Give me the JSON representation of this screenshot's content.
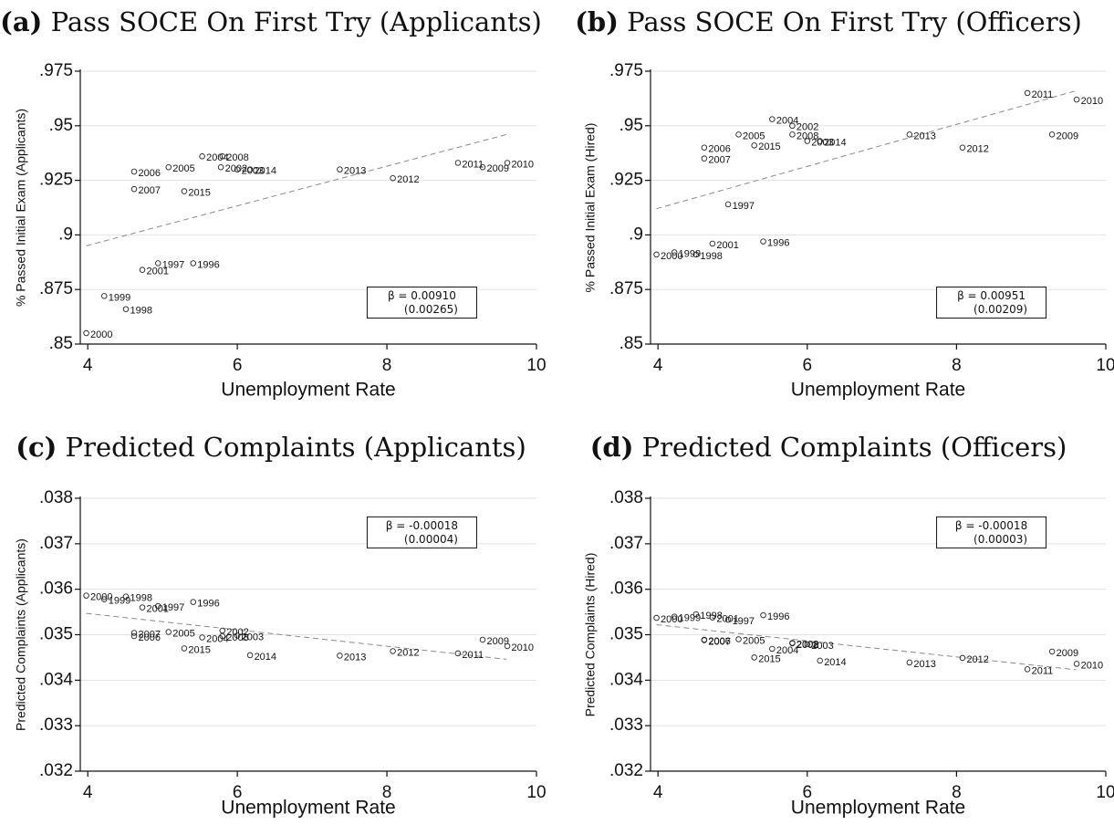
{
  "chart_data": [
    {
      "type": "scatter",
      "panel_letter": "(a)",
      "title": "Pass SOCE On First Try (Applicants)",
      "xlabel": "Unemployment Rate",
      "ylabel": "% Passed Initial Exam (Applicants)",
      "xlim": [
        3.9,
        10
      ],
      "ylim": [
        0.85,
        0.975
      ],
      "xticks": [
        4,
        6,
        8,
        10
      ],
      "xtick_labels": [
        "4",
        "6",
        "8",
        "10"
      ],
      "yticks": [
        0.85,
        0.875,
        0.9,
        0.925,
        0.95,
        0.975
      ],
      "ytick_labels": [
        ".85",
        ".875",
        ".9",
        ".925",
        ".95",
        ".975"
      ],
      "grid": true,
      "annotation": {
        "line1": "β = 0.00910",
        "line2": "(0.00265)",
        "x": 9.2,
        "y": 0.869
      },
      "fit_line": {
        "x": [
          3.98,
          9.6
        ],
        "y": [
          0.895,
          0.946
        ]
      },
      "points": [
        {
          "label": "2000",
          "x": 3.98,
          "y": 0.855
        },
        {
          "label": "1999",
          "x": 4.22,
          "y": 0.872
        },
        {
          "label": "1998",
          "x": 4.51,
          "y": 0.866
        },
        {
          "label": "2001",
          "x": 4.73,
          "y": 0.884
        },
        {
          "label": "1997",
          "x": 4.94,
          "y": 0.887
        },
        {
          "label": "1996",
          "x": 5.41,
          "y": 0.887
        },
        {
          "label": "2006",
          "x": 4.62,
          "y": 0.929
        },
        {
          "label": "2007",
          "x": 4.62,
          "y": 0.921
        },
        {
          "label": "2005",
          "x": 5.08,
          "y": 0.931
        },
        {
          "label": "2015",
          "x": 5.29,
          "y": 0.92
        },
        {
          "label": "2004",
          "x": 5.53,
          "y": 0.936
        },
        {
          "label": "2008",
          "x": 5.8,
          "y": 0.936
        },
        {
          "label": "2002",
          "x": 5.78,
          "y": 0.931
        },
        {
          "label": "2003",
          "x": 6.0,
          "y": 0.93
        },
        {
          "label": "2014",
          "x": 6.17,
          "y": 0.93
        },
        {
          "label": "2013",
          "x": 7.37,
          "y": 0.93
        },
        {
          "label": "2012",
          "x": 8.08,
          "y": 0.926
        },
        {
          "label": "2011",
          "x": 8.95,
          "y": 0.933
        },
        {
          "label": "2009",
          "x": 9.28,
          "y": 0.931
        },
        {
          "label": "2010",
          "x": 9.61,
          "y": 0.933
        }
      ]
    },
    {
      "type": "scatter",
      "panel_letter": "(b)",
      "title": "Pass SOCE On First Try (Officers)",
      "xlabel": "Unemployment Rate",
      "ylabel": "% Passed Initial Exam (Hired)",
      "xlim": [
        3.9,
        10
      ],
      "ylim": [
        0.85,
        0.975
      ],
      "xticks": [
        4,
        6,
        8,
        10
      ],
      "xtick_labels": [
        "4",
        "6",
        "8",
        "10"
      ],
      "yticks": [
        0.85,
        0.875,
        0.9,
        0.925,
        0.95,
        0.975
      ],
      "ytick_labels": [
        ".85",
        ".875",
        ".9",
        ".925",
        ".95",
        ".975"
      ],
      "grid": true,
      "annotation": {
        "line1": "β = 0.00951",
        "line2": "(0.00209)",
        "x": 9.2,
        "y": 0.869
      },
      "fit_line": {
        "x": [
          3.98,
          9.6
        ],
        "y": [
          0.912,
          0.966
        ]
      },
      "points": [
        {
          "label": "2000",
          "x": 3.98,
          "y": 0.891
        },
        {
          "label": "1999",
          "x": 4.22,
          "y": 0.892
        },
        {
          "label": "1998",
          "x": 4.51,
          "y": 0.891
        },
        {
          "label": "2001",
          "x": 4.73,
          "y": 0.896
        },
        {
          "label": "1996",
          "x": 5.41,
          "y": 0.897
        },
        {
          "label": "1997",
          "x": 4.94,
          "y": 0.914
        },
        {
          "label": "2006",
          "x": 4.62,
          "y": 0.94
        },
        {
          "label": "2007",
          "x": 4.62,
          "y": 0.935
        },
        {
          "label": "2005",
          "x": 5.08,
          "y": 0.946
        },
        {
          "label": "2015",
          "x": 5.29,
          "y": 0.941
        },
        {
          "label": "2004",
          "x": 5.53,
          "y": 0.953
        },
        {
          "label": "2002",
          "x": 5.8,
          "y": 0.95
        },
        {
          "label": "2008",
          "x": 5.8,
          "y": 0.946
        },
        {
          "label": "2003",
          "x": 6.0,
          "y": 0.943
        },
        {
          "label": "2014",
          "x": 6.17,
          "y": 0.943
        },
        {
          "label": "2013",
          "x": 7.37,
          "y": 0.946
        },
        {
          "label": "2012",
          "x": 8.08,
          "y": 0.94
        },
        {
          "label": "2011",
          "x": 8.95,
          "y": 0.965
        },
        {
          "label": "2009",
          "x": 9.28,
          "y": 0.946
        },
        {
          "label": "2010",
          "x": 9.61,
          "y": 0.962
        }
      ]
    },
    {
      "type": "scatter",
      "panel_letter": "(c)",
      "title": "Predicted Complaints (Applicants)",
      "xlabel": "Unemployment Rate",
      "ylabel": "Predicted Complaints (Applicants)",
      "xlim": [
        3.9,
        10
      ],
      "ylim": [
        0.032,
        0.038
      ],
      "xticks": [
        4,
        6,
        8,
        10
      ],
      "xtick_labels": [
        "4",
        "6",
        "8",
        "10"
      ],
      "yticks": [
        0.032,
        0.033,
        0.034,
        0.035,
        0.036,
        0.037,
        0.038
      ],
      "ytick_labels": [
        ".032",
        ".033",
        ".034",
        ".035",
        ".036",
        ".037",
        ".038"
      ],
      "grid": true,
      "annotation": {
        "line1": "β = -0.00018",
        "line2": "(0.00004)",
        "x": 9.2,
        "y": 0.03725
      },
      "fit_line": {
        "x": [
          3.98,
          9.6
        ],
        "y": [
          0.03547,
          0.03446
        ]
      },
      "points": [
        {
          "label": "2000",
          "x": 3.98,
          "y": 0.03586
        },
        {
          "label": "1999",
          "x": 4.22,
          "y": 0.03578
        },
        {
          "label": "1998",
          "x": 4.51,
          "y": 0.03584
        },
        {
          "label": "2001",
          "x": 4.73,
          "y": 0.0356
        },
        {
          "label": "1997",
          "x": 4.94,
          "y": 0.03563
        },
        {
          "label": "1996",
          "x": 5.41,
          "y": 0.03572
        },
        {
          "label": "2007",
          "x": 4.62,
          "y": 0.03504
        },
        {
          "label": "2006",
          "x": 4.62,
          "y": 0.03497
        },
        {
          "label": "2005",
          "x": 5.08,
          "y": 0.03506
        },
        {
          "label": "2015",
          "x": 5.29,
          "y": 0.0347
        },
        {
          "label": "2004",
          "x": 5.53,
          "y": 0.03494
        },
        {
          "label": "2002",
          "x": 5.8,
          "y": 0.03509
        },
        {
          "label": "2008",
          "x": 5.8,
          "y": 0.03497
        },
        {
          "label": "2003",
          "x": 6.0,
          "y": 0.03498
        },
        {
          "label": "2014",
          "x": 6.17,
          "y": 0.03455
        },
        {
          "label": "2013",
          "x": 7.37,
          "y": 0.03454
        },
        {
          "label": "2012",
          "x": 8.08,
          "y": 0.03464
        },
        {
          "label": "2011",
          "x": 8.95,
          "y": 0.03459
        },
        {
          "label": "2009",
          "x": 9.28,
          "y": 0.03489
        },
        {
          "label": "2010",
          "x": 9.61,
          "y": 0.03475
        }
      ]
    },
    {
      "type": "scatter",
      "panel_letter": "(d)",
      "title": "Predicted Complaints (Officers)",
      "xlabel": "Unemployment Rate",
      "ylabel": "Predicted Complaints (Hired)",
      "xlim": [
        3.9,
        10
      ],
      "ylim": [
        0.032,
        0.038
      ],
      "xticks": [
        4,
        6,
        8,
        10
      ],
      "xtick_labels": [
        "4",
        "6",
        "8",
        "10"
      ],
      "yticks": [
        0.032,
        0.033,
        0.034,
        0.035,
        0.036,
        0.037,
        0.038
      ],
      "ytick_labels": [
        ".032",
        ".033",
        ".034",
        ".035",
        ".036",
        ".037",
        ".038"
      ],
      "grid": true,
      "annotation": {
        "line1": "β = -0.00018",
        "line2": "(0.00003)",
        "x": 9.2,
        "y": 0.03725
      },
      "fit_line": {
        "x": [
          3.98,
          9.6
        ],
        "y": [
          0.03522,
          0.03423
        ]
      },
      "points": [
        {
          "label": "2000",
          "x": 3.98,
          "y": 0.03537
        },
        {
          "label": "1999",
          "x": 4.22,
          "y": 0.0354
        },
        {
          "label": "1998",
          "x": 4.51,
          "y": 0.03545
        },
        {
          "label": "2001",
          "x": 4.73,
          "y": 0.03538
        },
        {
          "label": "1997",
          "x": 4.94,
          "y": 0.03533
        },
        {
          "label": "1996",
          "x": 5.41,
          "y": 0.03543
        },
        {
          "label": "2006",
          "x": 4.62,
          "y": 0.03489
        },
        {
          "label": "2007",
          "x": 4.62,
          "y": 0.03488
        },
        {
          "label": "2005",
          "x": 5.08,
          "y": 0.0349
        },
        {
          "label": "2015",
          "x": 5.29,
          "y": 0.0345
        },
        {
          "label": "2004",
          "x": 5.53,
          "y": 0.03469
        },
        {
          "label": "2008",
          "x": 5.8,
          "y": 0.03482
        },
        {
          "label": "2002",
          "x": 5.8,
          "y": 0.03481
        },
        {
          "label": "2003",
          "x": 6.0,
          "y": 0.03479
        },
        {
          "label": "2014",
          "x": 6.17,
          "y": 0.03443
        },
        {
          "label": "2013",
          "x": 7.37,
          "y": 0.03439
        },
        {
          "label": "2012",
          "x": 8.08,
          "y": 0.03449
        },
        {
          "label": "2011",
          "x": 8.95,
          "y": 0.03424
        },
        {
          "label": "2009",
          "x": 9.28,
          "y": 0.03463
        },
        {
          "label": "2010",
          "x": 9.61,
          "y": 0.03436
        }
      ]
    }
  ]
}
